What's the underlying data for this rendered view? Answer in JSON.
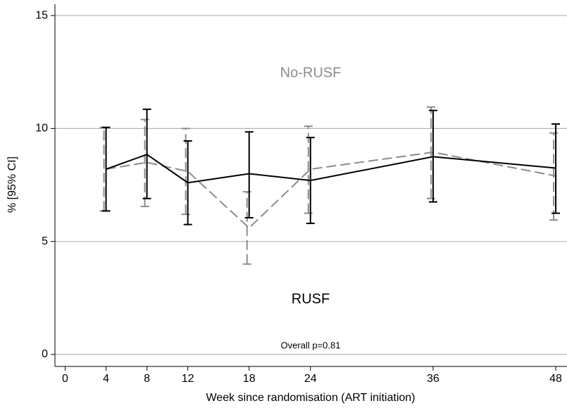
{
  "chart_data": {
    "type": "errorbar-line",
    "x_label": "Week since randomisation (ART initiation)",
    "y_label": "% [95% CI]",
    "annotation": "Overall p=0.81",
    "x": [
      4,
      8,
      12,
      18,
      24,
      36,
      48
    ],
    "series": [
      {
        "name": "RUSF",
        "color": "#000000",
        "dash": "solid",
        "values": [
          8.2,
          8.85,
          7.6,
          8.0,
          7.7,
          8.75,
          8.25
        ],
        "lower": [
          6.35,
          6.9,
          5.75,
          6.05,
          5.8,
          6.75,
          6.25
        ],
        "upper": [
          10.05,
          10.85,
          9.45,
          9.85,
          9.6,
          10.8,
          10.2
        ]
      },
      {
        "name": "No-RUSF",
        "color": "#8c8c8c",
        "dash": "dashed",
        "values": [
          8.2,
          8.5,
          8.1,
          5.6,
          8.2,
          8.95,
          7.9
        ],
        "lower": [
          6.35,
          6.55,
          6.2,
          4.0,
          6.25,
          6.9,
          5.95
        ],
        "upper": [
          10.05,
          10.4,
          10.0,
          7.2,
          10.1,
          10.95,
          9.8
        ]
      }
    ],
    "xlim": [
      -1,
      49.1
    ],
    "xticks": [
      0,
      4,
      8,
      12,
      18,
      24,
      36,
      48
    ],
    "ylim": [
      -0.53,
      15.5
    ],
    "yticks": [
      0,
      5,
      10,
      15
    ],
    "grid": true
  }
}
